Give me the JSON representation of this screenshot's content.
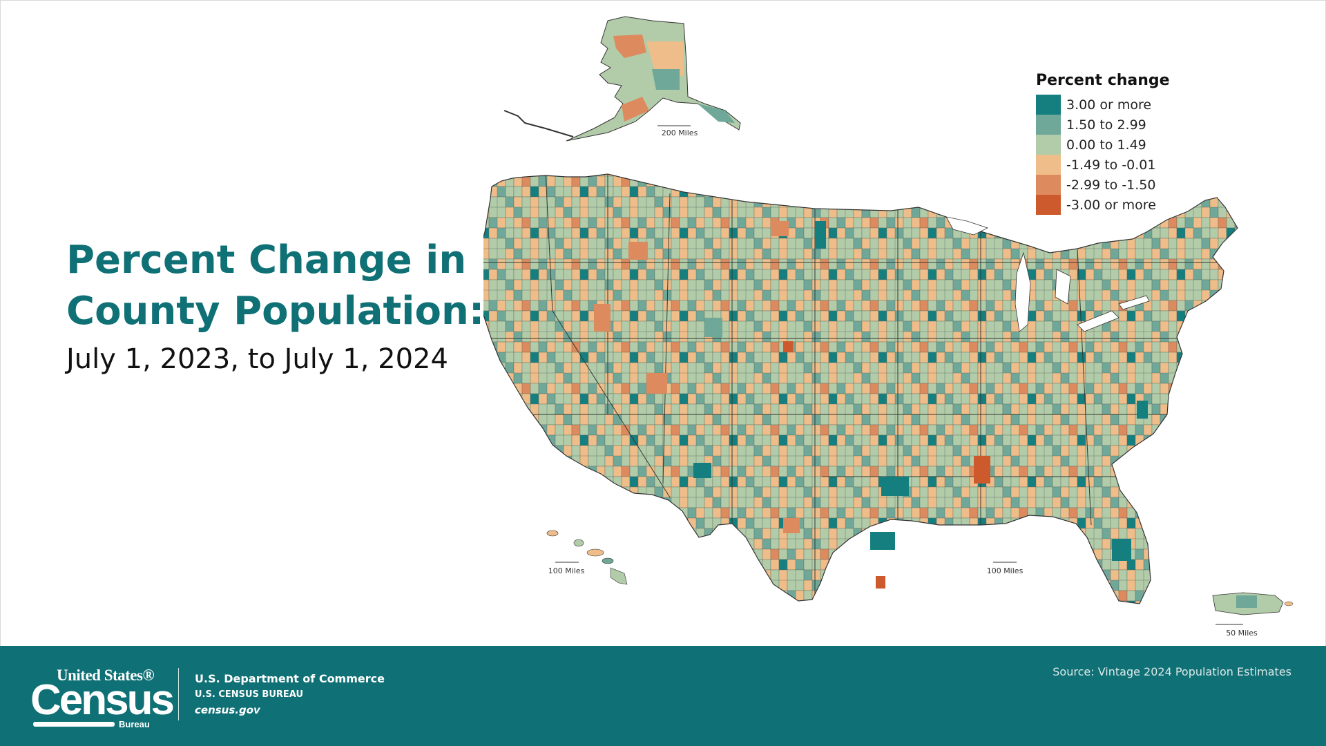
{
  "title": {
    "line1": "Percent Change in",
    "line2": "County Population:",
    "subtitle": "July 1, 2023, to July 1, 2024"
  },
  "legend": {
    "title": "Percent change",
    "items": [
      {
        "label": "3.00 or more",
        "color": "#157f80"
      },
      {
        "label": "1.50 to 2.99",
        "color": "#6fa798"
      },
      {
        "label": "0.00 to 1.49",
        "color": "#b2cba9"
      },
      {
        "label": "-1.49 to -0.01",
        "color": "#efbd89"
      },
      {
        "label": "-2.99 to -1.50",
        "color": "#dd8a5e"
      },
      {
        "label": "-3.00 or more",
        "color": "#cd5a2c"
      }
    ]
  },
  "map": {
    "scale_alaska": "200 Miles",
    "scale_hawaii": "100 Miles",
    "scale_conus": "100 Miles",
    "scale_pr": "50 Miles",
    "regions": [
      "Alaska",
      "Hawaii",
      "Contiguous United States",
      "Puerto Rico"
    ]
  },
  "footer": {
    "logo_top": "United States®",
    "logo_main": "Census",
    "logo_bottom": "Bureau",
    "dept_line1": "U.S. Department of Commerce",
    "dept_line2": "U.S. CENSUS BUREAU",
    "dept_line3": "census.gov",
    "source": "Source: Vintage 2024 Population Estimates",
    "bg_color": "#0f7075"
  }
}
